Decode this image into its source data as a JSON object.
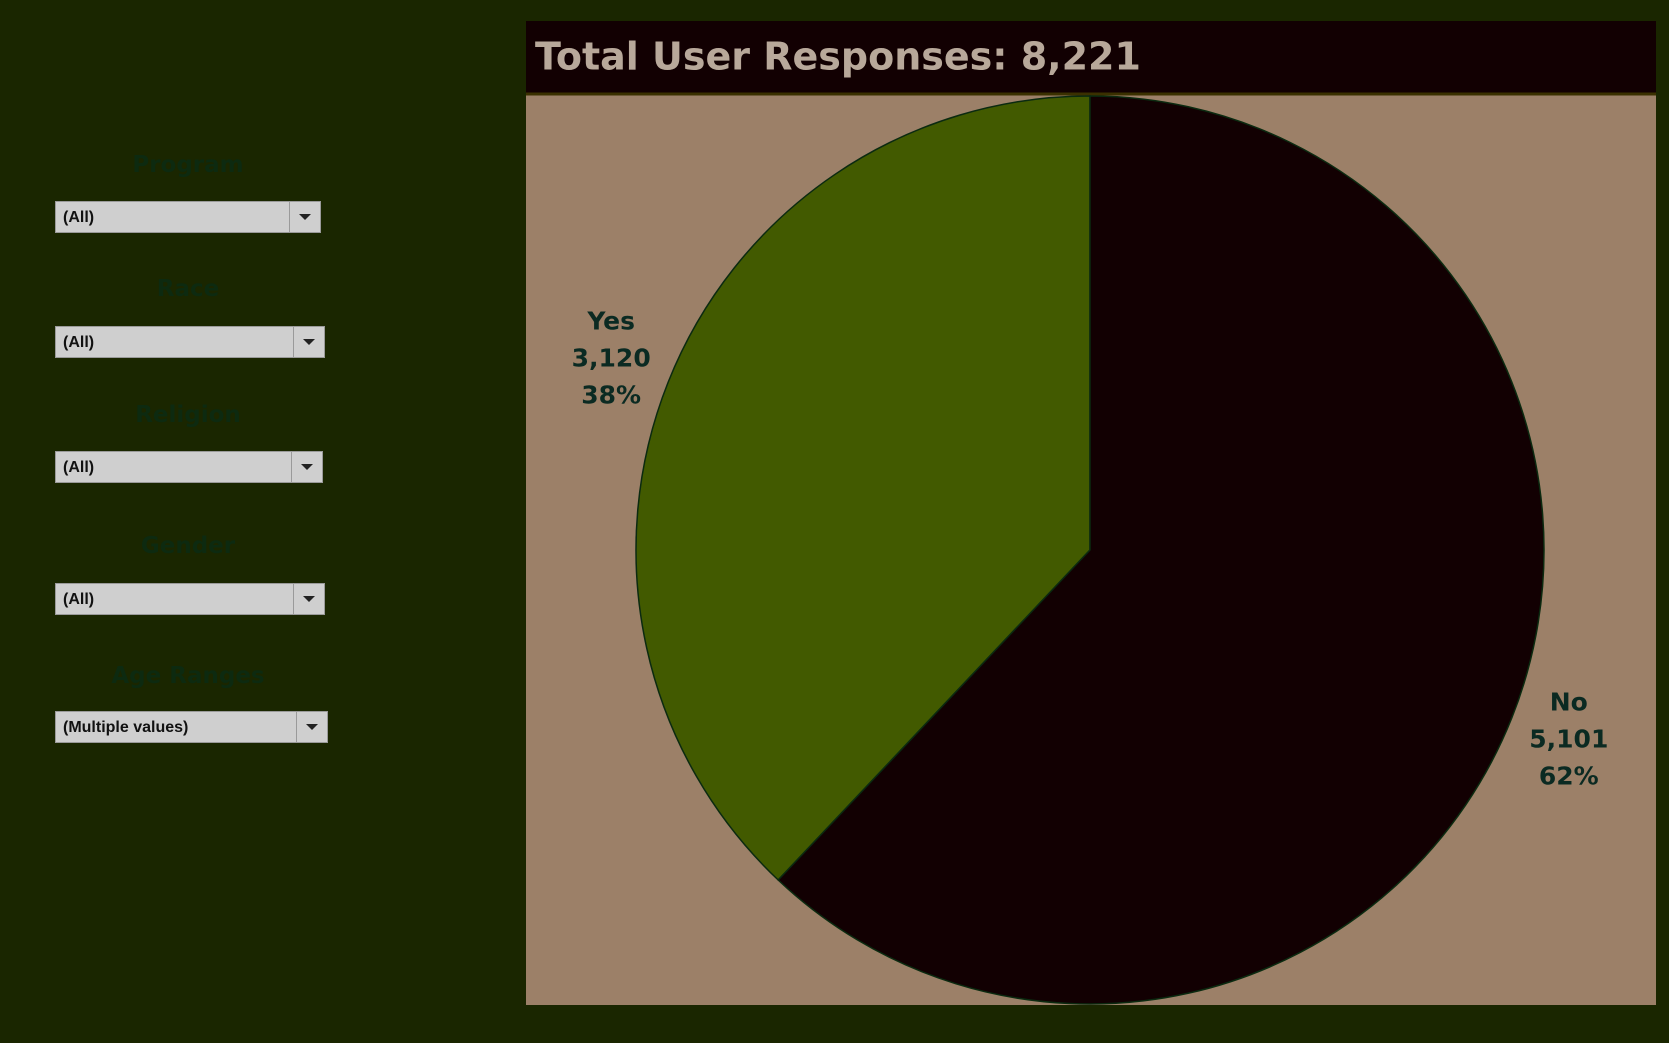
{
  "filters": [
    {
      "label": "Program",
      "value": "(All)"
    },
    {
      "label": "Race",
      "value": "(All)"
    },
    {
      "label": "Religion",
      "value": "(All)"
    },
    {
      "label": "Gender",
      "value": "(All)"
    },
    {
      "label": "Age Ranges",
      "value": "(Multiple values)"
    }
  ],
  "chart_data": {
    "type": "pie",
    "title": "Total User Responses: 8,221",
    "categories": [
      "Yes",
      "No"
    ],
    "values": [
      3120,
      5101
    ],
    "value_labels": [
      "3,120",
      "5,101"
    ],
    "percent_labels": [
      "38%",
      "62%"
    ],
    "colors": [
      "#425a00",
      "#120002"
    ]
  }
}
